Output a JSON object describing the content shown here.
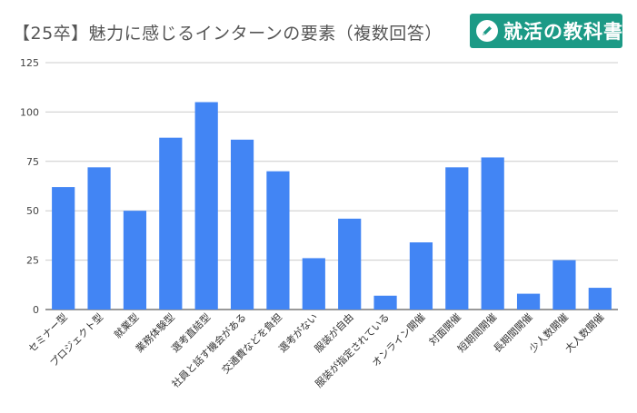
{
  "title": "【25卒】魅力に感じるインターンの要素（複数回答）",
  "logo": {
    "text": "就活の教科書",
    "icon": "pencil-circle-icon"
  },
  "colors": {
    "bar": "#4285f4",
    "grid": "#cccccc",
    "logo_bg": "#1c9a86"
  },
  "chart_data": {
    "type": "bar",
    "title": "【25卒】魅力に感じるインターンの要素（複数回答）",
    "xlabel": "",
    "ylabel": "",
    "ylim": [
      0,
      125
    ],
    "yticks": [
      0,
      25,
      50,
      75,
      100,
      125
    ],
    "grid": true,
    "categories": [
      "セミナー型",
      "プロジェクト型",
      "就業型",
      "業務体験型",
      "選考直結型",
      "社員と話す機会がある",
      "交通費などを負担",
      "選考がない",
      "服装が自由",
      "服装が指定されている",
      "オンライン開催",
      "対面開催",
      "短期間開催",
      "長期間開催",
      "少人数開催",
      "大人数開催"
    ],
    "values": [
      62,
      72,
      50,
      87,
      105,
      86,
      70,
      26,
      46,
      7,
      34,
      72,
      77,
      8,
      25,
      11
    ]
  }
}
